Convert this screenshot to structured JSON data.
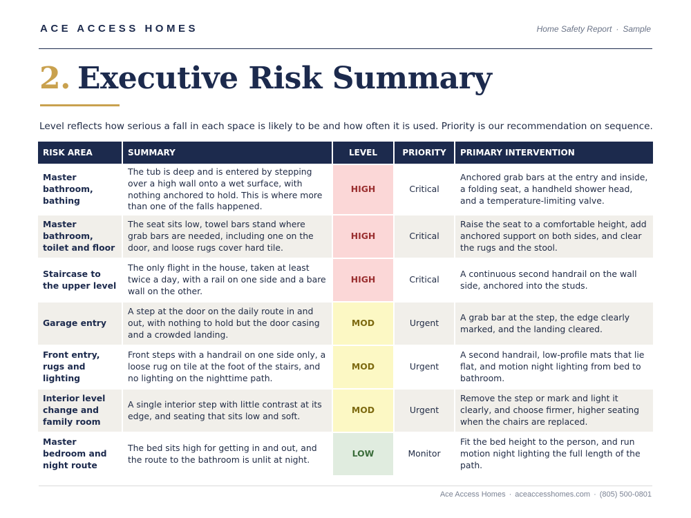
{
  "header": {
    "brand": "ACE ACCESS HOMES",
    "report_label": "Home Safety Report",
    "report_sep": "·",
    "report_variant": "Sample"
  },
  "section": {
    "number": "2.",
    "title": "Executive Risk Summary",
    "intro": "Level reflects how serious a fall in each space is likely to be and how often it is used. Priority is our recommendation on sequence."
  },
  "table": {
    "columns": {
      "area": "RISK AREA",
      "summary": "SUMMARY",
      "level": "LEVEL",
      "priority": "PRIORITY",
      "intervention": "PRIMARY INTERVENTION"
    },
    "rows": [
      {
        "area": "Master bathroom, bathing",
        "summary": "The tub is deep and is entered by stepping over a high wall onto a wet surface, with nothing anchored to hold. This is where more than one of the falls happened.",
        "level": "HIGH",
        "priority": "Critical",
        "intervention": "Anchored grab bars at the entry and inside, a folding seat, a handheld shower head, and a temperature-limiting valve."
      },
      {
        "area": "Master bathroom, toilet and floor",
        "summary": "The seat sits low, towel bars stand where grab bars are needed, including one on the door, and loose rugs cover hard tile.",
        "level": "HIGH",
        "priority": "Critical",
        "intervention": "Raise the seat to a comfortable height, add anchored support on both sides, and clear the rugs and the stool."
      },
      {
        "area": "Staircase to the upper level",
        "summary": "The only flight in the house, taken at least twice a day, with a rail on one side and a bare wall on the other.",
        "level": "HIGH",
        "priority": "Critical",
        "intervention": "A continuous second handrail on the wall side, anchored into the studs."
      },
      {
        "area": "Garage entry",
        "summary": "A step at the door on the daily route in and out, with nothing to hold but the door casing and a crowded landing.",
        "level": "MOD",
        "priority": "Urgent",
        "intervention": "A grab bar at the step, the edge clearly marked, and the landing cleared."
      },
      {
        "area": "Front entry, rugs and lighting",
        "summary": "Front steps with a handrail on one side only, a loose rug on tile at the foot of the stairs, and no lighting on the nighttime path.",
        "level": "MOD",
        "priority": "Urgent",
        "intervention": "A second handrail, low-profile mats that lie flat, and motion night lighting from bed to bathroom."
      },
      {
        "area": "Interior level change and family room",
        "summary": "A single interior step with little contrast at its edge, and seating that sits low and soft.",
        "level": "MOD",
        "priority": "Urgent",
        "intervention": "Remove the step or mark and light it clearly, and choose firmer, higher seating when the chairs are replaced."
      },
      {
        "area": "Master bedroom and night route",
        "summary": "The bed sits high for getting in and out, and the route to the bathroom is unlit at night.",
        "level": "LOW",
        "priority": "Monitor",
        "intervention": "Fit the bed height to the person, and run motion night lighting the full length of the path."
      }
    ]
  },
  "footer": {
    "company": "Ace Access Homes",
    "website": "aceaccesshomes.com",
    "phone": "(805) 500-0801",
    "sep": "·"
  },
  "colors": {
    "navy": "#1c2a4d",
    "gold": "#c9a14e",
    "high_bg": "#fbd7d7",
    "high_text": "#9a2f30",
    "mod_bg": "#fcf8c4",
    "mod_text": "#7d6a10",
    "low_bg": "#e0ecdf",
    "low_text": "#3b6d3b",
    "row_shade": "#f1efea"
  }
}
